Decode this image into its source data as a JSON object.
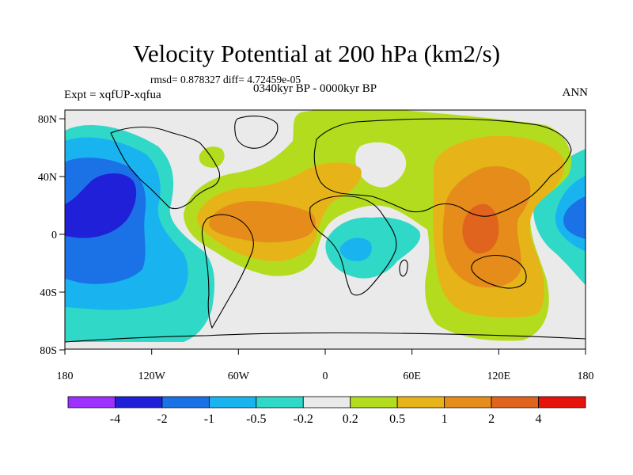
{
  "title": "Velocity Potential at 200 hPa (km2/s)",
  "stats_line": "rmsd= 0.878327 diff= 4.72459e-05",
  "experiment_line": "Expt = xqfUP-xqfua",
  "period_line": "0340kyr BP - 0000kyr BP",
  "season": "ANN",
  "axes": {
    "x_ticks": [
      "180",
      "120W",
      "60W",
      "0",
      "60E",
      "120E",
      "180"
    ],
    "y_ticks": [
      "80N",
      "40N",
      "0",
      "40S",
      "80S"
    ]
  },
  "colorbar": {
    "colors": [
      "#9b30ff",
      "#2020d8",
      "#1a72e6",
      "#19b4f0",
      "#30d8c8",
      "#eaeaea",
      "#b4dc1e",
      "#e6b418",
      "#e68c1a",
      "#e0641e",
      "#e6120c"
    ],
    "labels": [
      "-4",
      "-2",
      "-1",
      "-0.5",
      "-0.2",
      "0.2",
      "0.5",
      "1",
      "2",
      "4"
    ]
  },
  "field_colors": {
    "dark_blue": "#2020d8",
    "blue": "#1a72e6",
    "light_blue": "#19b4f0",
    "cyan": "#30d8c8",
    "neutral": "#eaeaea",
    "yellow_green": "#b4dc1e",
    "orange": "#e6b418",
    "dark_orange": "#e68c1a",
    "red_orange": "#e0641e"
  }
}
